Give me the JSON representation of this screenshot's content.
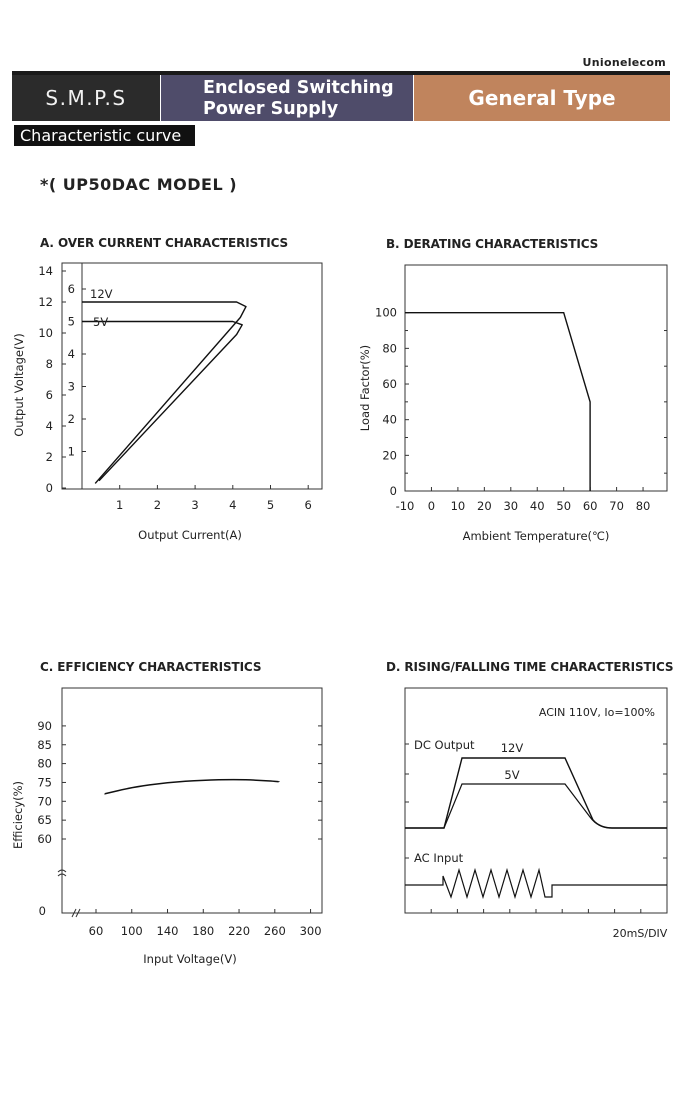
{
  "header": {
    "brand": "Unionelecom",
    "category": "S.M.P.S",
    "product_line1": "Enclosed Switching",
    "product_line2": "Power Supply",
    "type": "General Type",
    "colors": {
      "category_bg": "#2b2b2b",
      "product_bg": "#4f4c6a",
      "type_bg": "#c0845d"
    }
  },
  "section_label": "Characteristic curve",
  "model": "*( UP50DAC MODEL )",
  "chart_data": [
    {
      "id": "A",
      "type": "line",
      "title": "A. OVER CURRENT CHARACTERISTICS",
      "xlabel": "Output Current(A)",
      "ylabel": "Output Voltage(V)",
      "xticks": [
        "1",
        "2",
        "3",
        "4",
        "5",
        "6"
      ],
      "yticks_outer": [
        "0",
        "2",
        "4",
        "6",
        "8",
        "10",
        "12",
        "14"
      ],
      "yticks_inner": [
        "1",
        "2",
        "3",
        "4",
        "5",
        "6"
      ],
      "xlim": [
        0,
        6.5
      ],
      "ylim": [
        0,
        14
      ],
      "series": [
        {
          "name": "12V",
          "axis": "outer",
          "x": [
            0,
            4.1,
            4.35,
            4.2,
            0.35
          ],
          "y": [
            12,
            12,
            11.7,
            11,
            0.3
          ]
        },
        {
          "name": "5V",
          "axis": "inner",
          "x": [
            0,
            4.0,
            4.25,
            4.1,
            0.45
          ],
          "y": [
            5,
            5,
            4.9,
            4.6,
            0.1
          ]
        }
      ]
    },
    {
      "id": "B",
      "type": "line",
      "title": "B. DERATING CHARACTERISTICS",
      "xlabel": "Ambient Temperature(℃)",
      "ylabel": "Load Factor(%)",
      "xticks": [
        "-10",
        "0",
        "10",
        "20",
        "30",
        "40",
        "50",
        "60",
        "70",
        "80"
      ],
      "yticks": [
        "0",
        "20",
        "40",
        "60",
        "80",
        "100"
      ],
      "xlim": [
        -10,
        80
      ],
      "ylim": [
        0,
        100
      ],
      "series": [
        {
          "x": [
            -10,
            50,
            60,
            60
          ],
          "y": [
            100,
            100,
            50,
            0
          ]
        }
      ]
    },
    {
      "id": "C",
      "type": "line",
      "title": "C. EFFICIENCY CHARACTERISTICS",
      "xlabel": "Input Voltage(V)",
      "ylabel": "Efficiecy(%)",
      "xticks": [
        "60",
        "100",
        "140",
        "180",
        "220",
        "260",
        "300"
      ],
      "yticks": [
        "60",
        "65",
        "70",
        "75",
        "80",
        "85",
        "90"
      ],
      "ybreak_label": "0",
      "xlim": [
        60,
        300
      ],
      "ylim": [
        60,
        90
      ],
      "series": [
        {
          "x": [
            70,
            100,
            140,
            180,
            215,
            240,
            265
          ],
          "y": [
            72.0,
            73.7,
            75.0,
            75.6,
            75.8,
            75.6,
            75.2
          ]
        }
      ]
    },
    {
      "id": "D",
      "type": "line",
      "title": "D. RISING/FALLING TIME CHARACTERISTICS",
      "condition": "ACIN 110V, Io=100%",
      "dc_label": "DC Output",
      "ac_label": "AC Input",
      "series_labels": [
        "12V",
        "5V"
      ],
      "x_unit_label": "20mS/DIV"
    }
  ]
}
